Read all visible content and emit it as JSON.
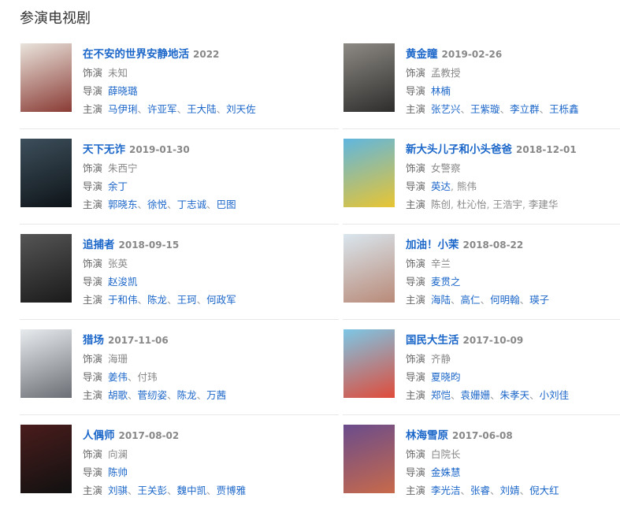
{
  "section_title": "参演电视剧",
  "labels": {
    "role": "饰演",
    "director": "导演",
    "cast": "主演"
  },
  "items": [
    {
      "title": "在不安的世界安静地活",
      "date": "2022",
      "role": "未知",
      "poster_colors": [
        "#e9e4dc",
        "#8a3b35"
      ],
      "directors": [
        {
          "name": "薛晓璐",
          "link": true
        }
      ],
      "cast": [
        {
          "name": "马伊琍",
          "link": true
        },
        {
          "name": "许亚军",
          "link": true
        },
        {
          "name": "王大陆",
          "link": true
        },
        {
          "name": "刘天佐",
          "link": true
        }
      ],
      "sep": "、"
    },
    {
      "title": "黄金瞳",
      "date": "2019-02-26",
      "role": "孟教授",
      "poster_colors": [
        "#8d8a84",
        "#2e2d2c"
      ],
      "directors": [
        {
          "name": "林楠",
          "link": true
        }
      ],
      "cast": [
        {
          "name": "张艺兴",
          "link": true
        },
        {
          "name": "王紫璇",
          "link": true
        },
        {
          "name": "李立群",
          "link": true
        },
        {
          "name": "王栎鑫",
          "link": true
        }
      ],
      "sep": "、"
    },
    {
      "title": "天下无诈",
      "date": "2019-01-30",
      "role": "朱西宁",
      "poster_colors": [
        "#3d4f5c",
        "#0e1418"
      ],
      "directors": [
        {
          "name": "余丁",
          "link": true
        }
      ],
      "cast": [
        {
          "name": "郭晓东",
          "link": true
        },
        {
          "name": "徐悦",
          "link": true
        },
        {
          "name": "丁志诚",
          "link": true
        },
        {
          "name": "巴图",
          "link": true
        }
      ],
      "sep": "、"
    },
    {
      "title": "新大头儿子和小头爸爸",
      "date": "2018-12-01",
      "role": "女警察",
      "poster_colors": [
        "#5fb6e0",
        "#e9c531"
      ],
      "directors": [
        {
          "name": "英达",
          "link": true
        },
        {
          "name": "熊伟",
          "link": false
        }
      ],
      "cast": [
        {
          "name": "陈创",
          "link": false
        },
        {
          "name": "杜沁怡",
          "link": false
        },
        {
          "name": "王浩宇",
          "link": false
        },
        {
          "name": "李建华",
          "link": false
        }
      ],
      "sep": ", "
    },
    {
      "title": "追捕者",
      "date": "2018-09-15",
      "role": "张英",
      "poster_colors": [
        "#555",
        "#1a1a1a"
      ],
      "directors": [
        {
          "name": "赵浚凯",
          "link": true
        }
      ],
      "cast": [
        {
          "name": "于和伟",
          "link": true
        },
        {
          "name": "陈龙",
          "link": true
        },
        {
          "name": "王珂",
          "link": true
        },
        {
          "name": "何政军",
          "link": true
        }
      ],
      "sep": "、"
    },
    {
      "title": "加油！小茉",
      "date": "2018-08-22",
      "role": "辛兰",
      "poster_colors": [
        "#d9e6ee",
        "#b98a78"
      ],
      "directors": [
        {
          "name": "麦贯之",
          "link": true
        }
      ],
      "cast": [
        {
          "name": "海陆",
          "link": true
        },
        {
          "name": "高仁",
          "link": true
        },
        {
          "name": "何明翰",
          "link": true
        },
        {
          "name": "瑛子",
          "link": true
        }
      ],
      "sep": "、"
    },
    {
      "title": "猎场",
      "date": "2017-11-06",
      "role": "海珊",
      "poster_colors": [
        "#e8ebee",
        "#6b6f75"
      ],
      "directors": [
        {
          "name": "姜伟",
          "link": true
        },
        {
          "name": "付玮",
          "link": false
        }
      ],
      "cast": [
        {
          "name": "胡歌",
          "link": true
        },
        {
          "name": "菅纫姿",
          "link": true
        },
        {
          "name": "陈龙",
          "link": true
        },
        {
          "name": "万茜",
          "link": true
        }
      ],
      "sep": "、"
    },
    {
      "title": "国民大生活",
      "date": "2017-10-09",
      "role": "齐静",
      "poster_colors": [
        "#7cc7e6",
        "#e04b3a"
      ],
      "directors": [
        {
          "name": "夏晓昀",
          "link": true
        }
      ],
      "cast": [
        {
          "name": "郑恺",
          "link": true
        },
        {
          "name": "袁姗姗",
          "link": true
        },
        {
          "name": "朱孝天",
          "link": true
        },
        {
          "name": "小刘佳",
          "link": true
        }
      ],
      "sep": "、"
    },
    {
      "title": "人偶师",
      "date": "2017-08-02",
      "role": "向澜",
      "poster_colors": [
        "#4a1c1c",
        "#111"
      ],
      "directors": [
        {
          "name": "陈帅",
          "link": true
        }
      ],
      "cast": [
        {
          "name": "刘骐",
          "link": true
        },
        {
          "name": "王关彭",
          "link": true
        },
        {
          "name": "魏中凯",
          "link": true
        },
        {
          "name": "贾博雅",
          "link": true
        }
      ],
      "sep": "、"
    },
    {
      "title": "林海雪原",
      "date": "2017-06-08",
      "role": "白院长",
      "poster_colors": [
        "#6a4c8c",
        "#c86a4a"
      ],
      "directors": [
        {
          "name": "金姝慧",
          "link": true
        }
      ],
      "cast": [
        {
          "name": "李光洁",
          "link": true
        },
        {
          "name": "张睿",
          "link": true
        },
        {
          "name": "刘婧",
          "link": true
        },
        {
          "name": "倪大红",
          "link": true
        }
      ],
      "sep": "、"
    }
  ]
}
